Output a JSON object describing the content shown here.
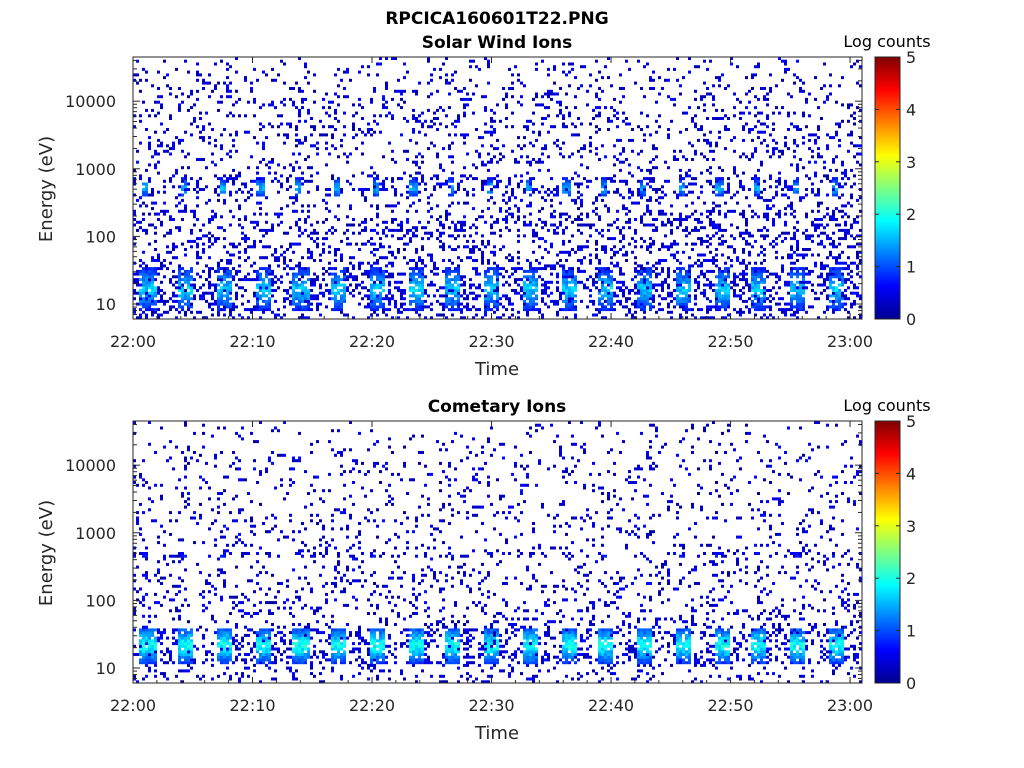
{
  "figure_title": "RPCICA160601T22.PNG",
  "colormap": [
    "#00008f",
    "#0000ff",
    "#0080ff",
    "#00ffff",
    "#80ff80",
    "#ffff00",
    "#ff8000",
    "#ff0000",
    "#800000"
  ],
  "chart_data": [
    {
      "type": "heatmap",
      "title": "Solar Wind Ions",
      "xlabel": "Time",
      "ylabel": "Energy (eV)",
      "y_scale": "log",
      "xlim": [
        "22:00",
        "23:01"
      ],
      "ylim": [
        6,
        45000
      ],
      "x_ticks": [
        "22:00",
        "22:10",
        "22:20",
        "22:30",
        "22:40",
        "22:50",
        "23:00"
      ],
      "y_ticks": [
        10,
        100,
        1000,
        10000
      ],
      "y_tick_labels": [
        "10",
        "100",
        "1000",
        "10000"
      ],
      "colorbar": {
        "label": "Log counts",
        "range": [
          0,
          5
        ],
        "ticks": [
          "0",
          "1",
          "2",
          "3",
          "4",
          "5"
        ]
      },
      "sweep_period_min": 3.2,
      "bands": [
        {
          "name": "low",
          "e_range": [
            8,
            35
          ],
          "peak": 1.9,
          "occupancy": 0.7
        },
        {
          "name": "mid",
          "e_range": [
            380,
            720
          ],
          "peak": 1.8,
          "occupancy": 0.75
        }
      ],
      "background_level": 0.4
    },
    {
      "type": "heatmap",
      "title": "Cometary Ions",
      "xlabel": "Time",
      "ylabel": "Energy (eV)",
      "y_scale": "log",
      "xlim": [
        "22:00",
        "23:01"
      ],
      "ylim": [
        6,
        45000
      ],
      "x_ticks": [
        "22:00",
        "22:10",
        "22:20",
        "22:30",
        "22:40",
        "22:50",
        "23:00"
      ],
      "y_ticks": [
        10,
        100,
        1000,
        10000
      ],
      "y_tick_labels": [
        "10",
        "100",
        "1000",
        "10000"
      ],
      "colorbar": {
        "label": "Log counts",
        "range": [
          0,
          5
        ],
        "ticks": [
          "0",
          "1",
          "2",
          "3",
          "4",
          "5"
        ]
      },
      "sweep_period_min": 3.2,
      "bands": [
        {
          "name": "low",
          "e_range": [
            12,
            40
          ],
          "peak": 2.3,
          "occupancy": 0.85
        },
        {
          "name": "mid",
          "e_range": [
            420,
            520
          ],
          "peak": 1.0,
          "occupancy": 0.5
        }
      ],
      "background_level": 0.25
    }
  ]
}
